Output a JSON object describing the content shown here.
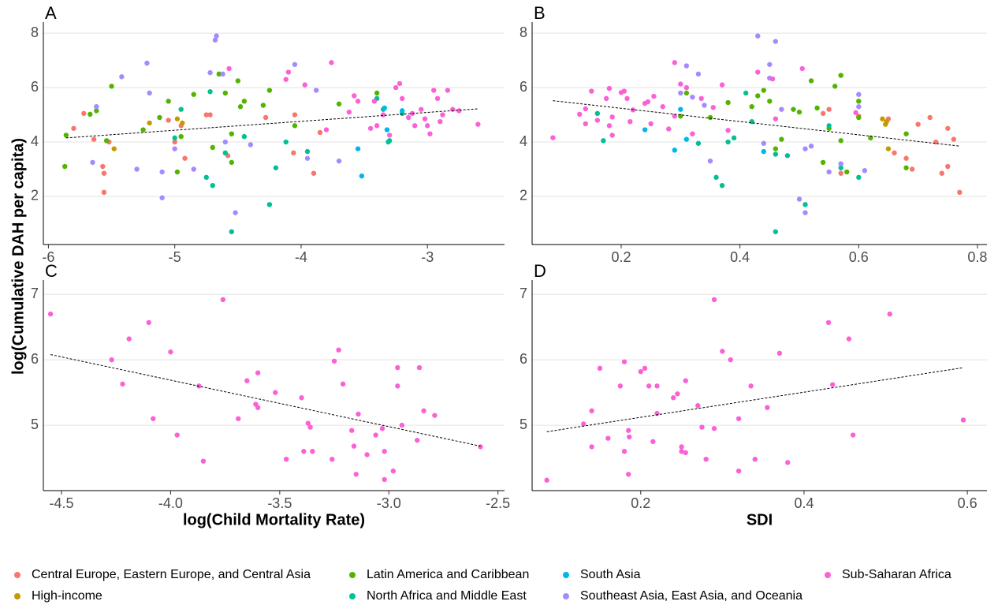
{
  "ylabel": "log(Cumulative DAH per capita)",
  "chart_data": [
    {
      "type": "scatter",
      "panel": "A",
      "xlim": [
        -6.04,
        -2.39
      ],
      "ylim": [
        0.23,
        8.41
      ],
      "xticks": [
        -6,
        -5,
        -4,
        -3
      ],
      "yticks": [
        2,
        4,
        6,
        8
      ],
      "grid": true,
      "trendline": {
        "x": [
          -5.86,
          -2.6
        ],
        "values": [
          4.15,
          5.22
        ]
      },
      "series": [
        {
          "name": "Central Europe, Eastern Europe, and Central Asia",
          "color": "#F8766D",
          "x": [
            -5.8,
            -5.72,
            -5.64,
            -5.57,
            -5.56,
            -5.56,
            -5.52,
            -5.05,
            -5.0,
            -4.95,
            -4.92,
            -4.75,
            -4.72,
            -4.58,
            -4.28,
            -4.06,
            -4.05,
            -3.9,
            -3.85
          ],
          "values": [
            4.5,
            5.05,
            4.1,
            3.1,
            2.85,
            2.15,
            4.0,
            4.8,
            4.0,
            4.6,
            3.4,
            5.0,
            5.0,
            3.5,
            4.9,
            3.6,
            5.0,
            2.85,
            4.35
          ]
        },
        {
          "name": "High-income",
          "color": "#C49A00",
          "x": [
            -5.48,
            -5.2,
            -4.98,
            -4.94
          ],
          "values": [
            3.75,
            4.7,
            4.85,
            4.7
          ]
        },
        {
          "name": "Latin America and Caribbean",
          "color": "#53B400",
          "x": [
            -5.86,
            -5.87,
            -5.67,
            -5.62,
            -5.54,
            -5.5,
            -5.25,
            -5.12,
            -5.05,
            -4.98,
            -4.95,
            -4.85,
            -4.7,
            -4.65,
            -4.6,
            -4.55,
            -4.5,
            -4.48,
            -4.45,
            -4.3,
            -4.25,
            -4.05,
            -3.7,
            -3.4,
            -4.55
          ],
          "values": [
            4.25,
            3.1,
            5.02,
            5.15,
            4.05,
            6.05,
            4.45,
            4.9,
            5.5,
            2.9,
            4.2,
            5.75,
            3.8,
            6.5,
            5.8,
            4.3,
            6.25,
            5.3,
            5.5,
            5.35,
            5.9,
            4.6,
            5.4,
            5.8,
            3.25
          ]
        },
        {
          "name": "North Africa and Middle East",
          "color": "#00C094",
          "x": [
            -5.0,
            -4.95,
            -4.75,
            -4.72,
            -4.7,
            -4.6,
            -4.55,
            -4.45,
            -4.25,
            -4.2,
            -4.12,
            -3.95,
            -3.3,
            -3.35,
            -3.31,
            -3.2,
            -3.4
          ],
          "values": [
            4.15,
            5.2,
            2.7,
            5.85,
            2.4,
            3.6,
            0.7,
            4.2,
            1.7,
            3.05,
            4.0,
            3.65,
            4.05,
            5.2,
            4.0,
            5.05,
            5.6
          ]
        },
        {
          "name": "South Asia",
          "color": "#00B6EB",
          "x": [
            -3.52,
            -3.55,
            -3.32,
            -3.34,
            -3.2
          ],
          "values": [
            2.75,
            3.75,
            4.45,
            5.25,
            5.15
          ]
        },
        {
          "name": "Southeast Asia, East Asia, and Oceania",
          "color": "#A58AFF",
          "x": [
            -5.65,
            -5.62,
            -5.42,
            -5.3,
            -5.22,
            -5.2,
            -5.1,
            -5.1,
            -5.0,
            -4.85,
            -4.72,
            -4.68,
            -4.67,
            -4.62,
            -4.6,
            -4.52,
            -4.4,
            -4.05,
            -3.95,
            -3.88,
            -3.7
          ],
          "values": [
            3.25,
            5.3,
            6.4,
            3.0,
            6.9,
            5.8,
            2.9,
            1.95,
            3.75,
            3.0,
            6.55,
            7.75,
            7.9,
            6.5,
            4.0,
            1.4,
            3.9,
            6.85,
            3.4,
            5.9,
            3.3
          ]
        },
        {
          "name": "Sub-Saharan Africa",
          "color": "#FB61D7",
          "x": [
            -4.57,
            -4.12,
            -4.1,
            -3.97,
            -3.8,
            -3.76,
            -3.62,
            -3.58,
            -3.55,
            -3.45,
            -3.42,
            -3.4,
            -3.35,
            -3.25,
            -3.22,
            -3.2,
            -3.15,
            -3.1,
            -3.05,
            -3.02,
            -3.0,
            -2.98,
            -2.95,
            -2.92,
            -2.9,
            -2.88,
            -2.84,
            -2.8,
            -2.75,
            -2.6,
            -3.3,
            -3.12
          ],
          "values": [
            6.7,
            6.3,
            6.57,
            6.1,
            4.45,
            6.92,
            5.1,
            5.7,
            5.5,
            4.5,
            5.5,
            4.6,
            5.0,
            6.0,
            6.15,
            5.6,
            4.9,
            4.6,
            5.2,
            4.85,
            4.6,
            4.3,
            5.9,
            5.6,
            4.75,
            5.0,
            5.9,
            5.2,
            5.15,
            4.65,
            4.25,
            5.05
          ]
        }
      ]
    },
    {
      "type": "scatter",
      "panel": "B",
      "xlim": [
        0.05,
        0.816
      ],
      "ylim": [
        0.23,
        8.41
      ],
      "xticks": [
        0.2,
        0.4,
        0.6,
        0.8
      ],
      "yticks": [
        2,
        4,
        6,
        8
      ],
      "grid": true,
      "trendline": {
        "x": [
          0.085,
          0.77
        ],
        "values": [
          5.52,
          3.85
        ]
      },
      "series": [
        {
          "name": "Central Europe, Eastern Europe, and Central Asia",
          "color": "#F8766D",
          "x": [
            0.54,
            0.6,
            0.65,
            0.66,
            0.68,
            0.69,
            0.7,
            0.72,
            0.73,
            0.74,
            0.75,
            0.75,
            0.76,
            0.77,
            0.57,
            0.55
          ],
          "values": [
            5.05,
            4.95,
            4.85,
            3.6,
            3.4,
            3.0,
            4.65,
            4.9,
            4.0,
            2.85,
            3.1,
            4.5,
            4.1,
            2.15,
            2.85,
            5.2
          ]
        },
        {
          "name": "High-income",
          "color": "#C49A00",
          "x": [
            0.64,
            0.645,
            0.65,
            0.647
          ],
          "values": [
            4.85,
            4.65,
            3.75,
            4.75
          ]
        },
        {
          "name": "Latin America and Caribbean",
          "color": "#53B400",
          "x": [
            0.3,
            0.31,
            0.38,
            0.42,
            0.43,
            0.44,
            0.45,
            0.47,
            0.49,
            0.5,
            0.52,
            0.53,
            0.54,
            0.55,
            0.56,
            0.57,
            0.57,
            0.58,
            0.6,
            0.6,
            0.62,
            0.68,
            0.68,
            0.35,
            0.46
          ],
          "values": [
            4.95,
            5.8,
            5.45,
            5.3,
            5.7,
            5.9,
            5.5,
            4.1,
            5.2,
            5.1,
            6.25,
            5.25,
            3.25,
            4.5,
            6.05,
            6.45,
            4.05,
            2.9,
            5.5,
            4.9,
            4.15,
            4.3,
            3.05,
            4.9,
            3.75
          ]
        },
        {
          "name": "North Africa and Middle East",
          "color": "#00C094",
          "x": [
            0.16,
            0.17,
            0.33,
            0.36,
            0.37,
            0.38,
            0.39,
            0.41,
            0.46,
            0.46,
            0.48,
            0.51,
            0.55,
            0.57,
            0.6,
            0.42
          ],
          "values": [
            5.05,
            4.05,
            3.95,
            2.7,
            2.4,
            4.0,
            4.15,
            5.8,
            3.55,
            0.7,
            3.5,
            1.7,
            4.6,
            3.05,
            2.7,
            4.75
          ]
        },
        {
          "name": "South Asia",
          "color": "#00B6EB",
          "x": [
            0.24,
            0.29,
            0.3,
            0.31,
            0.44
          ],
          "values": [
            4.45,
            3.7,
            5.2,
            4.1,
            3.65
          ]
        },
        {
          "name": "Southeast Asia, East Asia, and Oceania",
          "color": "#A58AFF",
          "x": [
            0.3,
            0.31,
            0.32,
            0.33,
            0.34,
            0.35,
            0.43,
            0.44,
            0.45,
            0.46,
            0.47,
            0.5,
            0.51,
            0.51,
            0.52,
            0.55,
            0.57,
            0.6,
            0.6,
            0.61,
            0.45
          ],
          "values": [
            5.8,
            6.8,
            5.65,
            6.5,
            5.35,
            3.3,
            7.9,
            3.95,
            6.85,
            7.7,
            5.2,
            1.9,
            1.4,
            3.75,
            3.85,
            2.9,
            3.2,
            5.75,
            5.3,
            2.95,
            6.35
          ]
        },
        {
          "name": "Sub-Saharan Africa",
          "color": "#FB61D7",
          "x": [
            0.085,
            0.13,
            0.14,
            0.14,
            0.15,
            0.16,
            0.175,
            0.18,
            0.18,
            0.185,
            0.185,
            0.2,
            0.205,
            0.21,
            0.215,
            0.22,
            0.24,
            0.245,
            0.25,
            0.255,
            0.27,
            0.28,
            0.29,
            0.29,
            0.3,
            0.31,
            0.32,
            0.335,
            0.355,
            0.37,
            0.38,
            0.43,
            0.455,
            0.46,
            0.505,
            0.595
          ],
          "values": [
            4.16,
            5.02,
            4.67,
            5.22,
            5.87,
            4.8,
            5.6,
            5.97,
            4.6,
            4.92,
            4.25,
            5.82,
            5.87,
            5.6,
            4.75,
            5.18,
            5.42,
            5.48,
            4.67,
            5.68,
            5.3,
            4.48,
            6.92,
            4.95,
            6.13,
            6.0,
            4.3,
            5.6,
            5.27,
            6.1,
            4.43,
            6.57,
            6.32,
            4.85,
            6.7,
            5.08
          ]
        }
      ]
    },
    {
      "type": "scatter",
      "panel": "C",
      "xlabel": "log(Child Mortality Rate)",
      "xlim": [
        -4.583,
        -2.47
      ],
      "ylim": [
        4.0,
        7.22
      ],
      "xticks": [
        -4.5,
        {
          "value": -4,
          "label": "-4.0"
        },
        -3.5,
        {
          "value": -3,
          "label": "-3.0"
        },
        -2.5
      ],
      "yticks": [
        5,
        6,
        7
      ],
      "grid": true,
      "color": "#FB61D7",
      "trendline": {
        "x": [
          -4.55,
          -2.58
        ],
        "values": [
          6.08,
          4.68
        ]
      },
      "x": [
        -4.55,
        -4.27,
        -4.22,
        -4.19,
        -4.1,
        -4.08,
        -4.0,
        -3.97,
        -3.87,
        -3.85,
        -3.76,
        -3.69,
        -3.65,
        -3.61,
        -3.6,
        -3.6,
        -3.52,
        -3.47,
        -3.4,
        -3.39,
        -3.37,
        -3.36,
        -3.35,
        -3.26,
        -3.25,
        -3.23,
        -3.21,
        -3.17,
        -3.16,
        -3.15,
        -3.14,
        -3.1,
        -3.06,
        -3.03,
        -3.02,
        -3.02,
        -2.98,
        -2.96,
        -2.96,
        -2.94,
        -2.87,
        -2.86,
        -2.84,
        -2.79,
        -2.58
      ],
      "values": [
        6.7,
        6.0,
        5.63,
        6.32,
        6.57,
        5.1,
        6.12,
        4.85,
        5.6,
        4.45,
        6.92,
        5.1,
        5.68,
        5.32,
        5.8,
        5.27,
        5.5,
        4.48,
        5.42,
        4.6,
        5.03,
        4.97,
        4.6,
        4.48,
        5.98,
        6.15,
        5.63,
        4.92,
        4.68,
        4.25,
        5.17,
        4.55,
        4.85,
        4.95,
        4.6,
        4.17,
        4.3,
        5.88,
        5.6,
        5.0,
        4.77,
        5.88,
        5.22,
        5.15,
        4.67
      ]
    },
    {
      "type": "scatter",
      "panel": "D",
      "xlabel": "SDI",
      "xlim": [
        0.067,
        0.624
      ],
      "ylim": [
        4.0,
        7.22
      ],
      "xticks": [
        0.2,
        0.4,
        0.6
      ],
      "yticks": [
        5,
        6,
        7
      ],
      "grid": true,
      "color": "#FB61D7",
      "trendline": {
        "x": [
          0.085,
          0.595
        ],
        "values": [
          4.9,
          5.88
        ]
      },
      "x": [
        0.085,
        0.13,
        0.14,
        0.14,
        0.15,
        0.16,
        0.175,
        0.18,
        0.18,
        0.185,
        0.185,
        0.186,
        0.2,
        0.205,
        0.21,
        0.215,
        0.22,
        0.22,
        0.24,
        0.245,
        0.25,
        0.25,
        0.255,
        0.255,
        0.27,
        0.275,
        0.28,
        0.29,
        0.29,
        0.3,
        0.31,
        0.32,
        0.32,
        0.335,
        0.34,
        0.355,
        0.37,
        0.38,
        0.43,
        0.435,
        0.455,
        0.46,
        0.505,
        0.595
      ],
      "values": [
        4.16,
        5.02,
        4.67,
        5.22,
        5.87,
        4.8,
        5.6,
        5.97,
        4.6,
        4.92,
        4.25,
        4.82,
        5.82,
        5.87,
        5.6,
        4.75,
        5.6,
        5.18,
        5.42,
        5.48,
        4.67,
        4.6,
        4.58,
        5.68,
        5.3,
        4.97,
        4.48,
        6.92,
        4.95,
        6.13,
        6.0,
        5.1,
        4.3,
        5.6,
        4.48,
        5.27,
        6.1,
        4.43,
        6.57,
        5.62,
        6.32,
        4.85,
        6.7,
        5.08
      ]
    }
  ]
}
